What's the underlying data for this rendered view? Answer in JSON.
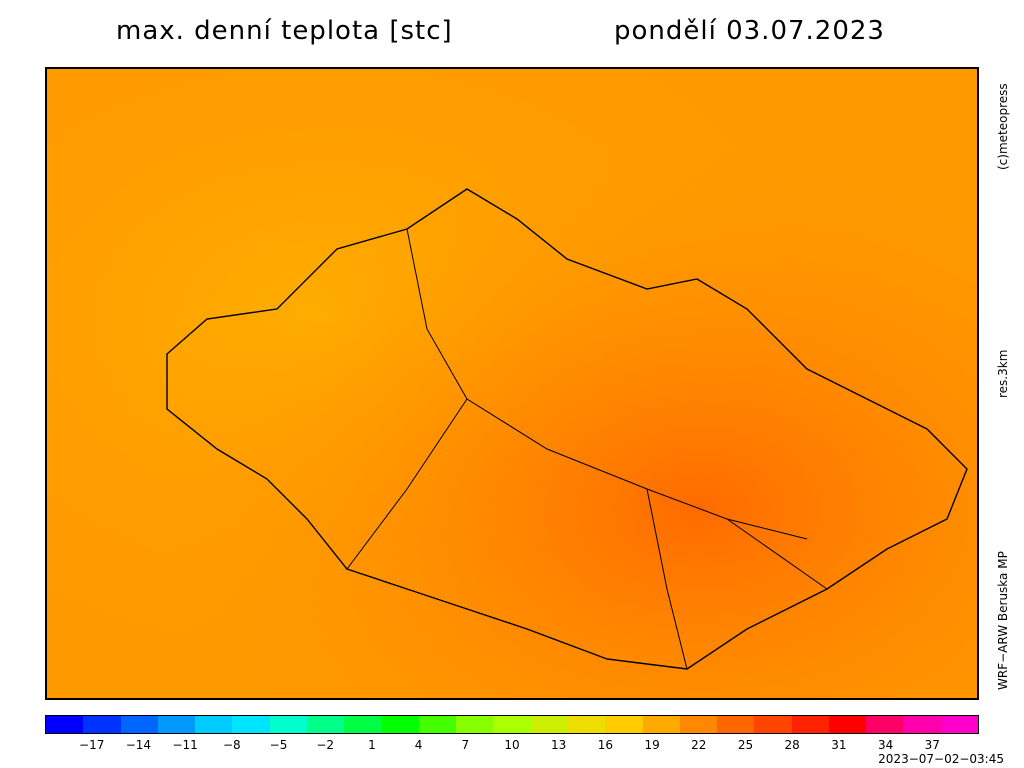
{
  "title": "max. denní teplota [stc]",
  "date": "pondělí 03.07.2023",
  "credit": "(c)meteopress",
  "resolution": "res.3km",
  "model": "WRF−ARW  Beruska  MP",
  "timestamp": "2023−07−02−03:45",
  "colorbar": {
    "min": -20,
    "max": 40,
    "tick_labels": [
      "−17",
      "−14",
      "−11",
      "−8",
      "−5",
      "−2",
      "1",
      "4",
      "7",
      "10",
      "13",
      "16",
      "19",
      "22",
      "25",
      "28",
      "31",
      "34",
      "37"
    ],
    "tick_values": [
      -17,
      -14,
      -11,
      -8,
      -5,
      -2,
      1,
      4,
      7,
      10,
      13,
      16,
      19,
      22,
      25,
      28,
      31,
      34,
      37
    ],
    "colors": [
      "#0000ff",
      "#0033ff",
      "#0066ff",
      "#0099ff",
      "#00ccff",
      "#00e5ff",
      "#00ffcc",
      "#00ff88",
      "#00ff44",
      "#00ff00",
      "#44ff00",
      "#88ff00",
      "#aaff00",
      "#ccee00",
      "#eedd00",
      "#ffcc00",
      "#ffaa00",
      "#ff8800",
      "#ff6600",
      "#ff4400",
      "#ff2200",
      "#ff0000",
      "#ff0066",
      "#ff00aa",
      "#ff00cc"
    ]
  },
  "map": {
    "background_color": "#ff9900",
    "border_color": "#000000"
  }
}
